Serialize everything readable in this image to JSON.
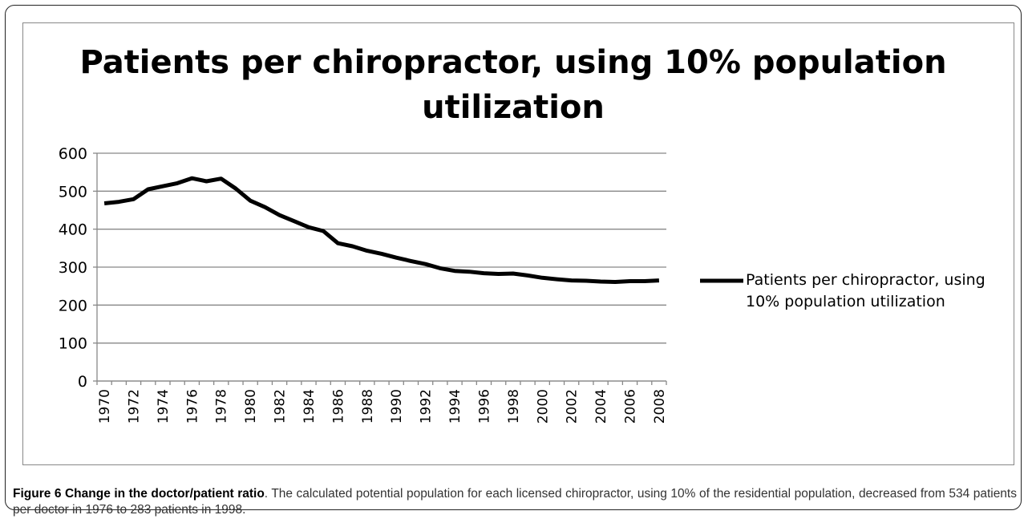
{
  "chart_data": {
    "type": "line",
    "title": "Patients per chiropractor, using 10% population utilization",
    "categories": [
      "1970",
      null,
      "1972",
      null,
      "1974",
      null,
      "1976",
      null,
      "1978",
      null,
      "1980",
      null,
      "1982",
      null,
      "1984",
      null,
      "1986",
      null,
      "1988",
      null,
      "1990",
      null,
      "1992",
      null,
      "1994",
      null,
      "1996",
      null,
      "1998",
      null,
      "2000",
      null,
      "2002",
      null,
      "2004",
      null,
      "2006",
      null,
      "2008"
    ],
    "series": [
      {
        "name": "Patients per chiropractor, using 10% population utilization",
        "color": "#000000",
        "values": [
          468,
          472,
          479,
          505,
          513,
          521,
          534,
          526,
          533,
          507,
          475,
          458,
          437,
          421,
          405,
          395,
          363,
          355,
          343,
          335,
          325,
          316,
          308,
          297,
          290,
          288,
          284,
          282,
          283,
          278,
          272,
          268,
          265,
          264,
          262,
          261,
          263,
          263,
          265
        ]
      }
    ],
    "ylim": [
      0,
      600
    ],
    "yticks": [
      0,
      100,
      200,
      300,
      400,
      500,
      600
    ],
    "grid": true,
    "legend": "right"
  },
  "caption": {
    "title": "Figure 6 Change in the doctor/patient ratio",
    "text": ". The calculated potential population for each licensed chiropractor, using 10% of the residential population, decreased from 534 patients per doctor in 1976 to 283 patients in 1998."
  }
}
